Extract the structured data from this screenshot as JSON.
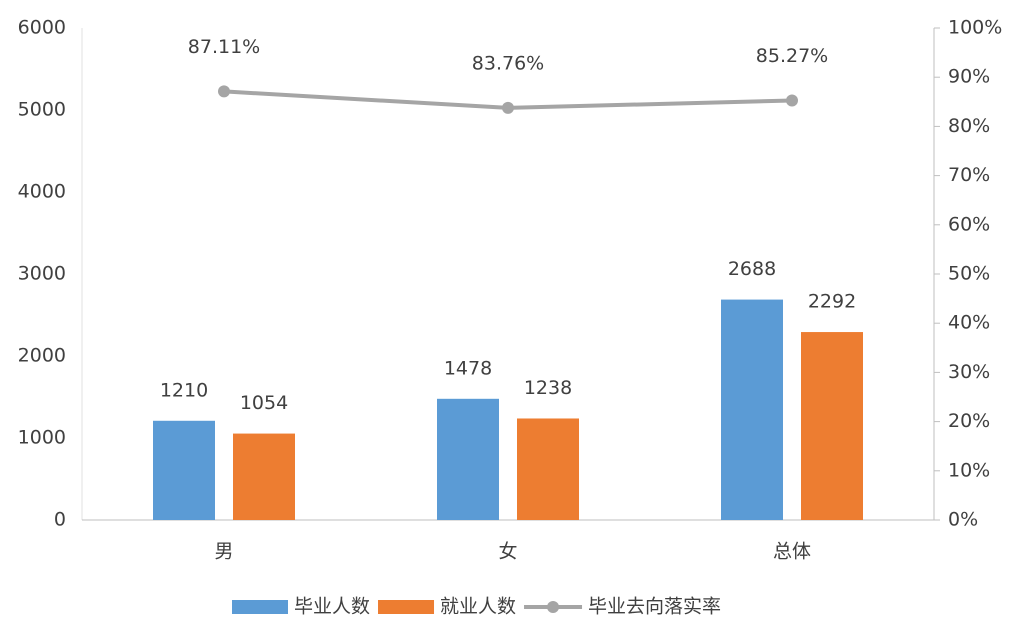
{
  "chart_data": {
    "type": "bar",
    "categories": [
      "男",
      "女",
      "总体"
    ],
    "series": [
      {
        "name": "毕业人数",
        "color": "#5b9bd5",
        "values": [
          1210,
          1478,
          2688
        ]
      },
      {
        "name": "就业人数",
        "color": "#ed7d31",
        "values": [
          1054,
          1238,
          2292
        ]
      },
      {
        "name": "毕业去向落实率",
        "color": "#a5a5a5",
        "type": "line",
        "axis": "y2",
        "values": [
          87.11,
          83.76,
          85.27
        ],
        "value_labels": [
          "87.11%",
          "83.76%",
          "85.27%"
        ]
      }
    ],
    "ylim": [
      0,
      6000
    ],
    "yticks": [
      0,
      1000,
      2000,
      3000,
      4000,
      5000,
      6000
    ],
    "y2lim": [
      0,
      100
    ],
    "y2ticks": [
      {
        "value": 0,
        "label": "0%"
      },
      {
        "value": 10,
        "label": "10%"
      },
      {
        "value": 20,
        "label": "20%"
      },
      {
        "value": 30,
        "label": "30%"
      },
      {
        "value": 40,
        "label": "40%"
      },
      {
        "value": 50,
        "label": "50%"
      },
      {
        "value": 60,
        "label": "60%"
      },
      {
        "value": 70,
        "label": "70%"
      },
      {
        "value": 80,
        "label": "80%"
      },
      {
        "value": 90,
        "label": "90%"
      },
      {
        "value": 100,
        "label": "100%"
      }
    ],
    "grid": false,
    "legend": "bottom"
  }
}
